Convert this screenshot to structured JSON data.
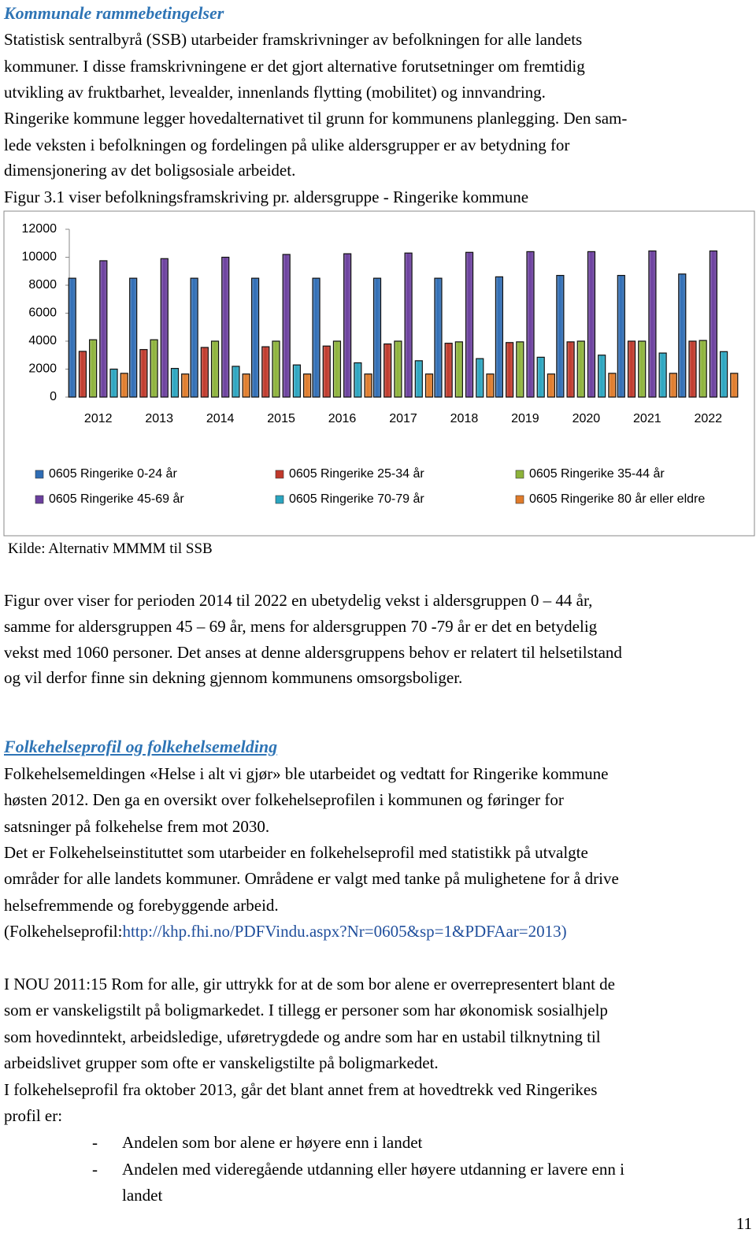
{
  "heading1": "Kommunale rammebetingelser",
  "intro_lines": [
    "Statistisk sentralbyrå (SSB) utarbeider framskrivninger av befolkningen for alle landets",
    "kommuner. I disse framskrivningene er det gjort alternative forutsetninger om fremtidig",
    "utvikling av fruktbarhet, levealder, innenlands flytting (mobilitet) og innvandring.",
    "Ringerike kommune legger hovedalternativet til grunn for kommunens planlegging. Den sam-",
    "lede veksten i befolkningen og fordelingen på ulike aldersgrupper er av betydning for",
    "dimensjonering av det boligsosiale arbeidet.",
    "Figur 3.1 viser befolkningsframskriving pr. aldersgruppe - Ringerike kommune"
  ],
  "chart_data": {
    "type": "bar",
    "categories": [
      "2012",
      "2013",
      "2014",
      "2015",
      "2016",
      "2017",
      "2018",
      "2019",
      "2020",
      "2021",
      "2022"
    ],
    "series": [
      {
        "name": "0605 Ringerike 0-24 år",
        "color": "#2f6db5",
        "values": [
          8500,
          8500,
          8500,
          8500,
          8500,
          8500,
          8500,
          8600,
          8700,
          8700,
          8800
        ]
      },
      {
        "name": "0605 Ringerike 25-34 år",
        "color": "#c0392b",
        "values": [
          3270,
          3400,
          3550,
          3600,
          3650,
          3800,
          3850,
          3900,
          3950,
          4000,
          4000
        ]
      },
      {
        "name": "0605 Ringerike 35-44 år",
        "color": "#8db33a",
        "values": [
          4100,
          4100,
          4000,
          4000,
          4000,
          4000,
          3950,
          3950,
          4000,
          4000,
          4050
        ]
      },
      {
        "name": "0605 Ringerike 45-69 år",
        "color": "#6b3f9e",
        "values": [
          9750,
          9900,
          10000,
          10200,
          10250,
          10300,
          10350,
          10400,
          10400,
          10450,
          10450
        ]
      },
      {
        "name": "0605 Ringerike 70-79 år",
        "color": "#2aa5c0",
        "values": [
          2000,
          2050,
          2200,
          2300,
          2450,
          2600,
          2750,
          2850,
          3000,
          3150,
          3250
        ]
      },
      {
        "name": "0605 Ringerike 80 år eller eldre",
        "color": "#e07b2a",
        "values": [
          1700,
          1650,
          1650,
          1650,
          1650,
          1650,
          1650,
          1650,
          1700,
          1700,
          1700
        ]
      }
    ],
    "ylim": [
      0,
      12000
    ],
    "yticks": [
      0,
      2000,
      4000,
      6000,
      8000,
      10000,
      12000
    ],
    "grid": false
  },
  "source": "Kilde: Alternativ MMMM til SSB",
  "body1_lines": [
    "Figur over viser for perioden 2014 til 2022 en ubetydelig vekst i aldersgruppen 0 – 44 år,",
    "samme for aldersgruppen 45 – 69 år, mens for aldersgruppen 70 -79 år er det en betydelig",
    "vekst med 1060 personer. Det anses at denne aldersgruppens behov er relatert til helsetilstand",
    "og vil derfor finne sin dekning gjennom kommunens omsorgsboliger."
  ],
  "heading2": "Folkehelseprofil og folkehelsemelding",
  "body2_lines": [
    "Folkehelsemeldingen «Helse i alt vi gjør» ble utarbeidet og vedtatt for Ringerike kommune",
    "høsten 2012. Den ga en oversikt over folkehelseprofilen i kommunen og føringer for",
    "satsninger på folkehelse frem mot 2030.",
    "Det er Folkehelseinstituttet som utarbeider en folkehelseprofil med statistikk på utvalgte",
    "områder for alle landets kommuner. Områdene er valgt med tanke på mulighetene for å drive",
    "helsefremmende og forebyggende arbeid."
  ],
  "link_line": {
    "prefix": "(Folkehelseprofil:",
    "url": "http://khp.fhi.no/PDFVindu.aspx?Nr=0605&sp=1&PDFAar=2013)"
  },
  "body3_lines": [
    "I NOU 2011:15 Rom for alle, gir uttrykk for at de som bor alene er overrepresentert blant de",
    "som er vanskeligstilt på boligmarkedet. I tillegg er personer som har økonomisk sosialhjelp",
    "som hovedinntekt, arbeidsledige, uføretrygdede og andre som har en ustabil tilknytning til",
    "arbeidslivet grupper som ofte er vanskeligstilte på boligmarkedet.",
    "I folkehelseprofil fra oktober 2013, går det blant annet frem at hovedtrekk ved Ringerikes",
    "profil er:"
  ],
  "bullets": [
    {
      "marker": "-",
      "lines": [
        "Andelen som bor alene er høyere enn i landet"
      ]
    },
    {
      "marker": "-",
      "lines": [
        "Andelen med videregående utdanning eller høyere utdanning er lavere enn i",
        "landet"
      ]
    }
  ],
  "page_number": "11"
}
